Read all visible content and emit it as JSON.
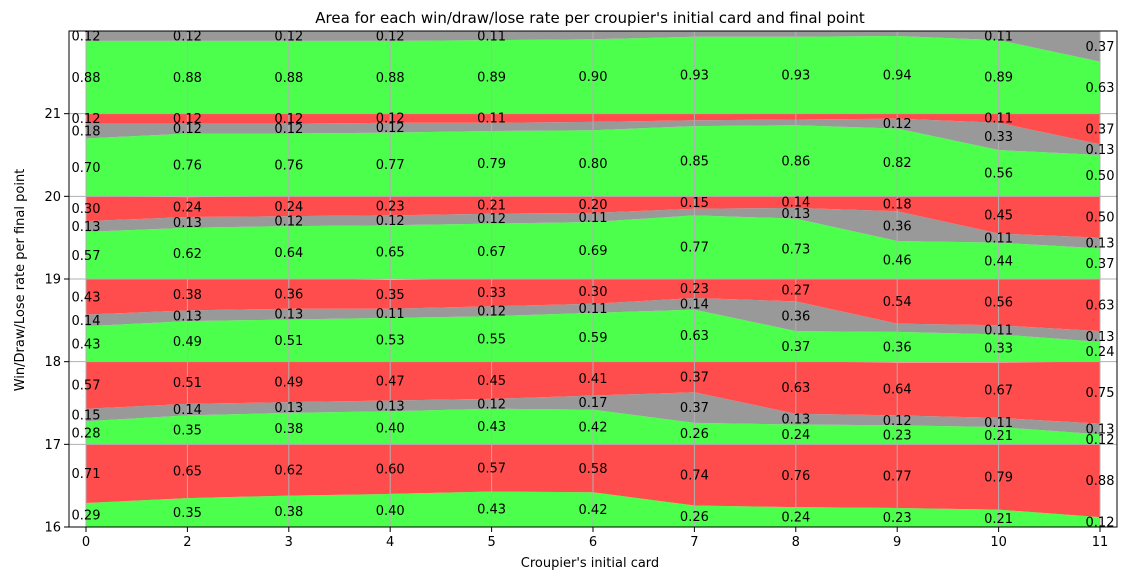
{
  "chart_data": {
    "type": "area",
    "title": "Area for each win/draw/lose rate per croupier's initial card and final point",
    "xlabel": "Croupier's initial card",
    "ylabel": "Win/Draw/Lose rate per final point",
    "categories": [
      "0",
      "2",
      "3",
      "4",
      "5",
      "6",
      "7",
      "8",
      "9",
      "10",
      "11"
    ],
    "ylim": [
      16,
      22
    ],
    "y_ticks": [
      "16",
      "17",
      "18",
      "19",
      "20",
      "21"
    ],
    "grid": true,
    "stack_order": [
      "win",
      "draw",
      "lose"
    ],
    "colors": {
      "win": "#4cff4c",
      "draw": "#999999",
      "lose": "#ff4c4c",
      "grid": "#b0b0b0"
    },
    "bands": [
      {
        "point": "16",
        "win": [
          0.29,
          0.35,
          0.38,
          0.4,
          0.43,
          0.42,
          0.26,
          0.24,
          0.23,
          0.21,
          0.12
        ],
        "draw": [
          0,
          0,
          0,
          0,
          0,
          0,
          0,
          0,
          0,
          0,
          0
        ],
        "lose": [
          0.71,
          0.65,
          0.62,
          0.6,
          0.57,
          0.58,
          0.74,
          0.76,
          0.77,
          0.79,
          0.88
        ]
      },
      {
        "point": "17",
        "win": [
          0.28,
          0.35,
          0.38,
          0.4,
          0.43,
          0.42,
          0.26,
          0.24,
          0.23,
          0.21,
          0.12
        ],
        "draw": [
          0.15,
          0.14,
          0.13,
          0.13,
          0.12,
          0.17,
          0.37,
          0.13,
          0.12,
          0.11,
          0.13
        ],
        "lose": [
          0.57,
          0.51,
          0.49,
          0.47,
          0.45,
          0.41,
          0.37,
          0.63,
          0.64,
          0.67,
          0.75
        ]
      },
      {
        "point": "18",
        "win": [
          0.43,
          0.49,
          0.51,
          0.53,
          0.55,
          0.59,
          0.63,
          0.37,
          0.36,
          0.33,
          0.24
        ],
        "draw": [
          0.14,
          0.13,
          0.13,
          0.11,
          0.12,
          0.11,
          0.14,
          0.36,
          0.1,
          0.11,
          0.13
        ],
        "lose": [
          0.43,
          0.38,
          0.36,
          0.35,
          0.33,
          0.3,
          0.23,
          0.27,
          0.54,
          0.56,
          0.63
        ]
      },
      {
        "point": "19",
        "win": [
          0.57,
          0.62,
          0.64,
          0.65,
          0.67,
          0.69,
          0.77,
          0.73,
          0.46,
          0.44,
          0.37
        ],
        "draw": [
          0.13,
          0.13,
          0.12,
          0.12,
          0.12,
          0.11,
          0.08,
          0.13,
          0.36,
          0.11,
          0.13
        ],
        "lose": [
          0.3,
          0.24,
          0.24,
          0.23,
          0.21,
          0.2,
          0.15,
          0.14,
          0.18,
          0.45,
          0.5
        ]
      },
      {
        "point": "20",
        "win": [
          0.7,
          0.76,
          0.76,
          0.77,
          0.79,
          0.8,
          0.85,
          0.86,
          0.82,
          0.56,
          0.5
        ],
        "draw": [
          0.18,
          0.12,
          0.12,
          0.12,
          0.1,
          0.1,
          0.07,
          0.07,
          0.12,
          0.33,
          0.13
        ],
        "lose": [
          0.12,
          0.12,
          0.12,
          0.12,
          0.11,
          0.1,
          0.08,
          0.07,
          0.06,
          0.11,
          0.37
        ]
      },
      {
        "point": "21",
        "win": [
          0.88,
          0.88,
          0.88,
          0.88,
          0.89,
          0.9,
          0.93,
          0.93,
          0.94,
          0.89,
          0.63
        ],
        "draw": [
          0.12,
          0.12,
          0.12,
          0.12,
          0.11,
          0.1,
          0.07,
          0.07,
          0.06,
          0.11,
          0.37
        ],
        "lose": [
          0,
          0,
          0,
          0,
          0,
          0,
          0,
          0,
          0,
          0,
          0
        ]
      }
    ],
    "labels": [
      {
        "point": "16",
        "rate": "win",
        "texts": [
          "0.29",
          "0.35",
          "0.38",
          "0.40",
          "0.43",
          "0.42",
          "0.26",
          "0.24",
          "0.23",
          "0.21",
          "0.12"
        ]
      },
      {
        "point": "16",
        "rate": "lose",
        "texts": [
          "0.71",
          "0.65",
          "0.62",
          "0.60",
          "0.57",
          "0.58",
          "0.74",
          "0.76",
          "0.77",
          "0.79",
          "0.88"
        ]
      },
      {
        "point": "17",
        "rate": "win",
        "texts": [
          "0.28",
          "0.35",
          "0.38",
          "0.40",
          "0.43",
          "0.42",
          "0.26",
          "0.24",
          "0.23",
          "0.21",
          "0.12"
        ]
      },
      {
        "point": "17",
        "rate": "draw",
        "texts": [
          "0.15",
          "0.14",
          "0.13",
          "0.13",
          "0.12",
          "0.17",
          "0.37",
          "0.13",
          "0.12",
          "0.11",
          "0.13"
        ]
      },
      {
        "point": "17",
        "rate": "lose",
        "texts": [
          "0.57",
          "0.51",
          "0.49",
          "0.47",
          "0.45",
          "0.41",
          "0.37",
          "0.63",
          "0.64",
          "0.67",
          "0.75"
        ]
      },
      {
        "point": "18",
        "rate": "win",
        "texts": [
          "0.43",
          "0.49",
          "0.51",
          "0.53",
          "0.55",
          "0.59",
          "0.63",
          "0.37",
          "0.36",
          "0.33",
          "0.24"
        ]
      },
      {
        "point": "18",
        "rate": "draw",
        "texts": [
          "0.14",
          "0.13",
          "0.13",
          "0.11",
          "0.12",
          "0.11",
          "0.14",
          "0.36",
          "",
          "0.11",
          "0.13"
        ]
      },
      {
        "point": "18",
        "rate": "lose",
        "texts": [
          "0.43",
          "0.38",
          "0.36",
          "0.35",
          "0.33",
          "0.30",
          "0.23",
          "0.27",
          "0.54",
          "0.56",
          "0.63"
        ]
      },
      {
        "point": "19",
        "rate": "win",
        "texts": [
          "0.57",
          "0.62",
          "0.64",
          "0.65",
          "0.67",
          "0.69",
          "0.77",
          "0.73",
          "0.46",
          "0.44",
          "0.37"
        ]
      },
      {
        "point": "19",
        "rate": "draw",
        "texts": [
          "0.13",
          "0.13",
          "0.12",
          "0.12",
          "0.12",
          "0.11",
          "",
          "0.13",
          "0.36",
          "0.11",
          "0.13"
        ]
      },
      {
        "point": "19",
        "rate": "lose",
        "texts": [
          "0.30",
          "0.24",
          "0.24",
          "0.23",
          "0.21",
          "0.20",
          "0.15",
          "0.14",
          "0.18",
          "0.45",
          "0.50"
        ]
      },
      {
        "point": "20",
        "rate": "win",
        "texts": [
          "0.70",
          "0.76",
          "0.76",
          "0.77",
          "0.79",
          "0.80",
          "0.85",
          "0.86",
          "0.82",
          "0.56",
          "0.50"
        ]
      },
      {
        "point": "20",
        "rate": "draw",
        "texts": [
          "0.18",
          "0.12",
          "0.12",
          "0.12",
          "",
          "",
          "",
          "",
          "0.12",
          "0.33",
          "0.13"
        ]
      },
      {
        "point": "20",
        "rate": "lose",
        "texts": [
          "0.12",
          "0.12",
          "0.12",
          "0.12",
          "0.11",
          "",
          "",
          "",
          "",
          "0.11",
          "0.37"
        ]
      },
      {
        "point": "21",
        "rate": "win",
        "texts": [
          "0.88",
          "0.88",
          "0.88",
          "0.88",
          "0.89",
          "0.90",
          "0.93",
          "0.93",
          "0.94",
          "0.89",
          "0.63"
        ]
      },
      {
        "point": "21",
        "rate": "draw",
        "texts": [
          "0.12",
          "0.12",
          "0.12",
          "0.12",
          "0.11",
          "",
          "",
          "",
          "",
          "0.11",
          "0.37"
        ]
      }
    ]
  }
}
